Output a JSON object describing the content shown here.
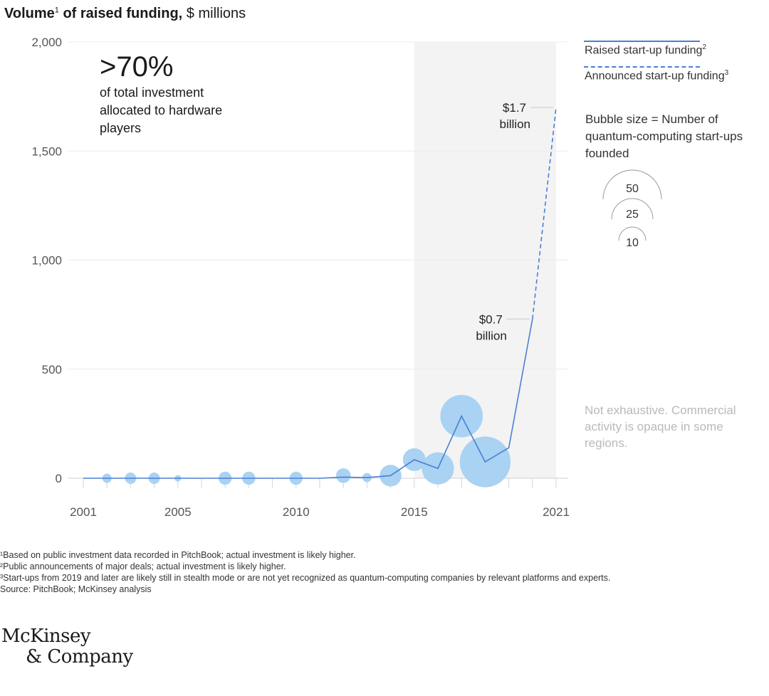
{
  "header": {
    "title_bold": "Volume",
    "title_sup": "1",
    "title_bold2": " of raised funding,",
    "title_rest": " $ millions"
  },
  "callout": {
    "big": ">70%",
    "text": "of total investment allocated to hardware players"
  },
  "legend": {
    "raised_label": "Raised start-up funding",
    "raised_sup": "2",
    "announced_label": "Announced start-up funding",
    "announced_sup": "3",
    "bubble_note": "Bubble size = Number of quantum-computing start-ups founded",
    "bubble_sizes": [
      "50",
      "25",
      "10"
    ]
  },
  "note_not_exhaustive": "Not exhaustive. Commercial activity is opaque in some regions.",
  "footnotes": [
    "¹Based on public investment data recorded in PitchBook; actual investment is likely higher.",
    "²Public announcements of major deals; actual investment is likely higher.",
    "³Start-ups from 2019 and later are likely still in stealth mode or are not yet recognized as quantum-computing companies by relevant platforms and experts.",
    " Source: PitchBook; McKinsey analysis"
  ],
  "logo": {
    "line1": "McKinsey",
    "line2": "& Company"
  },
  "chart_data": {
    "type": "line",
    "ylabel": "$ millions",
    "xlim": [
      2001,
      2021
    ],
    "ylim": [
      0,
      2000
    ],
    "yticks": [
      0,
      500,
      1000,
      1500,
      2000
    ],
    "ytick_labels": [
      "0",
      "500",
      "1,000",
      "1,500",
      "2,000"
    ],
    "xticks": [
      2001,
      2005,
      2010,
      2015,
      2021
    ],
    "xtick_labels": [
      "2001",
      "2005",
      "2010",
      "2015",
      "2021"
    ],
    "shaded_range": [
      2015,
      2021
    ],
    "series": [
      {
        "name": "Raised start-up funding",
        "style": "solid",
        "color": "#4a7fd6",
        "x": [
          2001,
          2002,
          2003,
          2004,
          2005,
          2006,
          2007,
          2008,
          2009,
          2010,
          2011,
          2012,
          2013,
          2014,
          2015,
          2016,
          2017,
          2018,
          2019,
          2020
        ],
        "y": [
          0,
          0,
          0,
          0,
          0,
          0,
          0,
          0,
          0,
          0,
          0,
          5,
          3,
          12,
          85,
          45,
          285,
          75,
          140,
          730
        ]
      },
      {
        "name": "Announced start-up funding",
        "style": "dashed",
        "color": "#4a7fd6",
        "x": [
          2020,
          2021
        ],
        "y": [
          730,
          1700
        ]
      }
    ],
    "bubbles": {
      "color": "#a9d2f3",
      "x": [
        2002,
        2003,
        2004,
        2005,
        2007,
        2008,
        2010,
        2012,
        2013,
        2014,
        2015,
        2016,
        2017,
        2018
      ],
      "y": [
        0,
        0,
        0,
        0,
        0,
        0,
        0,
        12,
        3,
        12,
        85,
        45,
        285,
        75
      ],
      "count": [
        2,
        3,
        3,
        1,
        4,
        4,
        4,
        5,
        2,
        11,
        12,
        24,
        42,
        60
      ]
    },
    "annotations": [
      {
        "x": 2020,
        "y": 730,
        "value": "$0.7",
        "unit": "billion"
      },
      {
        "x": 2021,
        "y": 1700,
        "value": "$1.7",
        "unit": "billion"
      }
    ]
  }
}
